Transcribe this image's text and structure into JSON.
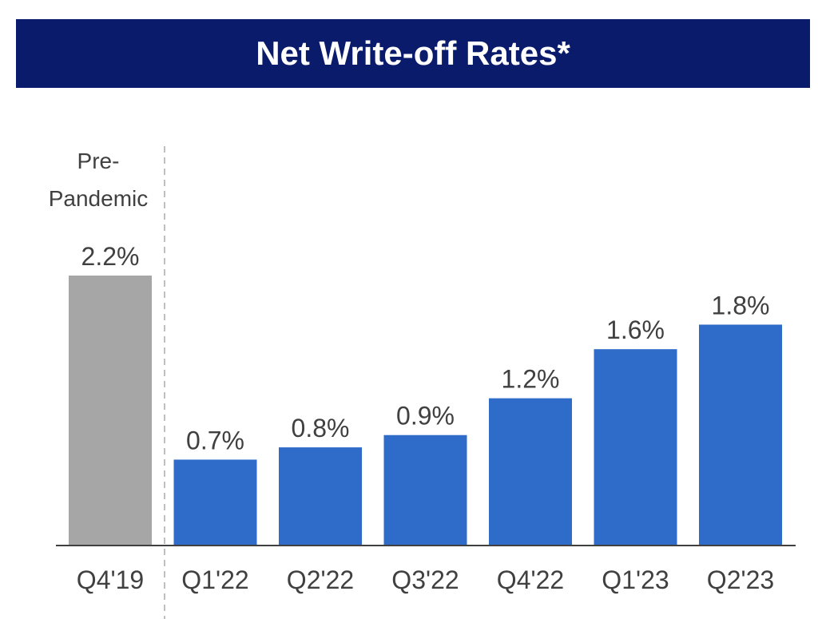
{
  "chart_data": {
    "type": "bar",
    "title": "Net Write-off Rates*",
    "annotation": [
      "Pre-",
      "Pandemic"
    ],
    "categories": [
      "Q4'19",
      "Q1'22",
      "Q2'22",
      "Q3'22",
      "Q4'22",
      "Q1'23",
      "Q2'23"
    ],
    "values": [
      2.2,
      0.7,
      0.8,
      0.9,
      1.2,
      1.6,
      1.8
    ],
    "value_labels": [
      "2.2%",
      "0.7%",
      "0.8%",
      "0.9%",
      "1.2%",
      "1.6%",
      "1.8%"
    ],
    "highlight_index": 0,
    "colors": {
      "pre_pandemic": "#a6a6a6",
      "bars": "#2f6bc9",
      "title_bg": "#0b1b6b",
      "title_text": "#ffffff",
      "label": "#404040",
      "divider": "#bfbfbf",
      "axis": "#404040"
    },
    "ylim": [
      0,
      2.2
    ],
    "grid": false,
    "xlabel": "",
    "ylabel": ""
  }
}
